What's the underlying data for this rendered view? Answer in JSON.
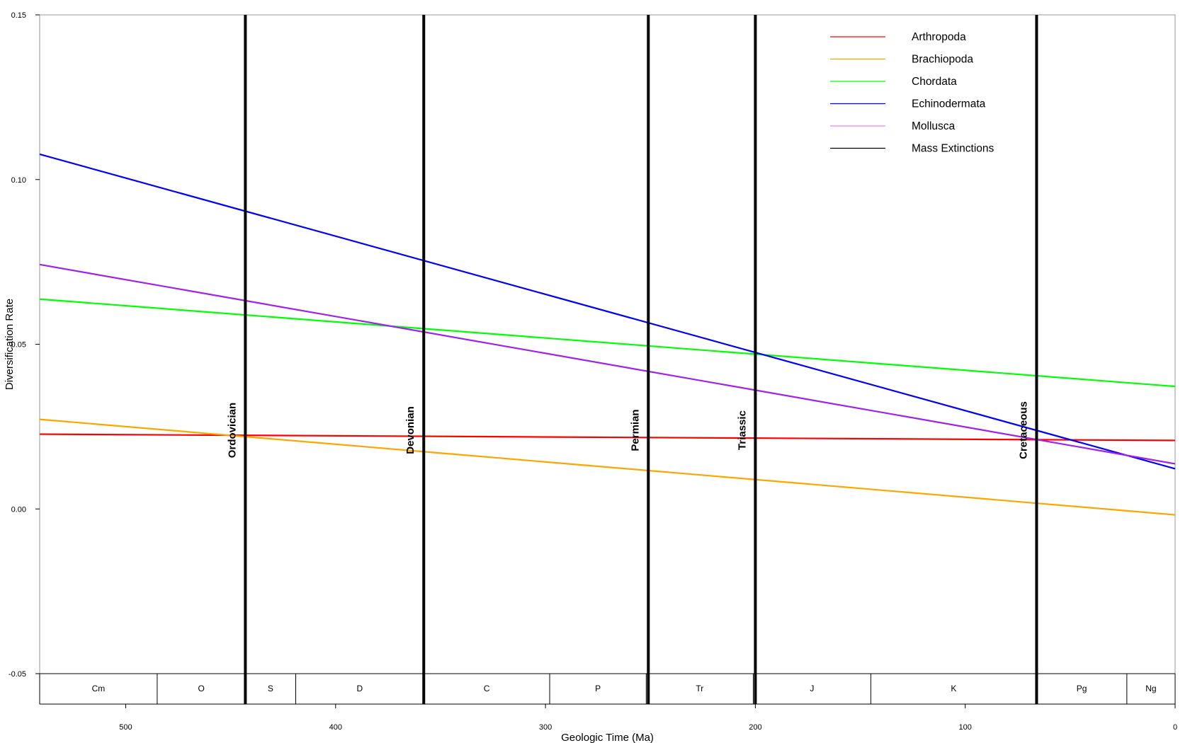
{
  "chart_data": {
    "type": "line",
    "xlabel": "Geologic Time (Ma)",
    "ylabel": "Diversification Rate",
    "xlim": [
      541,
      0
    ],
    "ylim": [
      -0.05,
      0.15
    ],
    "x_ticks": [
      500,
      400,
      300,
      200,
      100,
      0
    ],
    "x_tick_labels": [
      "500",
      "400",
      "300",
      "200",
      "100",
      "0"
    ],
    "y_ticks": [
      -0.05,
      0.0,
      0.05,
      0.1,
      0.15
    ],
    "y_tick_labels": [
      "-0.05",
      "0.00",
      "0.05",
      "0.10",
      "0.15"
    ],
    "grid": false,
    "legend_position": "top-right",
    "series": [
      {
        "name": "Arthropoda",
        "color": "#ff0000",
        "x": [
          541,
          0
        ],
        "y": [
          0.0227,
          0.0208
        ]
      },
      {
        "name": "Brachiopoda",
        "color": "#ffa500",
        "x": [
          541,
          0
        ],
        "y": [
          0.0272,
          -0.0018
        ]
      },
      {
        "name": "Chordata",
        "color": "#00ff00",
        "x": [
          541,
          0
        ],
        "y": [
          0.0637,
          0.0372
        ]
      },
      {
        "name": "Echinodermata",
        "color": "#0000ff",
        "x": [
          541,
          0
        ],
        "y": [
          0.1077,
          0.0122
        ]
      },
      {
        "name": "Mollusca",
        "color": "#a020f0",
        "x": [
          541,
          0
        ],
        "y": [
          0.0742,
          0.0137
        ]
      }
    ],
    "legend": [
      {
        "label": "Arthropoda",
        "color": "#ff0000"
      },
      {
        "label": "Brachiopoda",
        "color": "#ffa500"
      },
      {
        "label": "Chordata",
        "color": "#00ff00"
      },
      {
        "label": "Echinodermata",
        "color": "#0000ff"
      },
      {
        "label": "Mollusca",
        "color": "#ee82ee"
      },
      {
        "label": "Mass Extinctions",
        "color": "#000000"
      }
    ],
    "mass_extinctions": [
      {
        "label": "Ordovician",
        "x": 443
      },
      {
        "label": "Devonian",
        "x": 358
      },
      {
        "label": "Permian",
        "x": 251
      },
      {
        "label": "Triassic",
        "x": 200
      },
      {
        "label": "Cretaceous",
        "x": 66
      }
    ],
    "periods": [
      {
        "label": "Cm",
        "start": 541,
        "end": 485
      },
      {
        "label": "O",
        "start": 485,
        "end": 443
      },
      {
        "label": "S",
        "start": 443,
        "end": 419
      },
      {
        "label": "D",
        "start": 419,
        "end": 358
      },
      {
        "label": "C",
        "start": 358,
        "end": 298
      },
      {
        "label": "P",
        "start": 298,
        "end": 252
      },
      {
        "label": "Tr",
        "start": 252,
        "end": 201
      },
      {
        "label": "J",
        "start": 201,
        "end": 145
      },
      {
        "label": "K",
        "start": 145,
        "end": 66
      },
      {
        "label": "Pg",
        "start": 66,
        "end": 23
      },
      {
        "label": "Ng",
        "start": 23,
        "end": 0
      }
    ]
  }
}
